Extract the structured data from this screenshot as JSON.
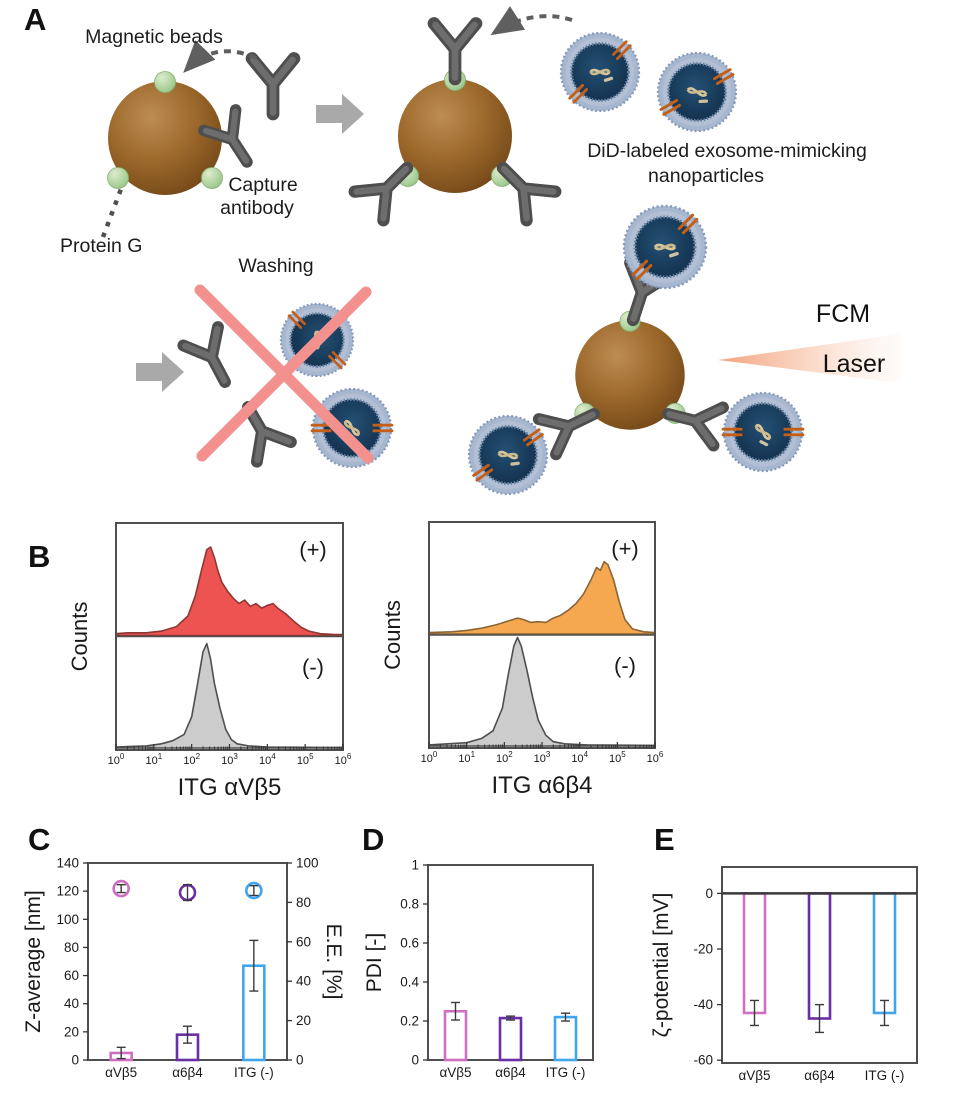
{
  "figure": {
    "panels": {
      "a": "A",
      "b": "B",
      "c": "C",
      "d": "D",
      "e": "E"
    }
  },
  "panel_a": {
    "magnetic_beads": "Magnetic beads",
    "capture_line1": "Capture",
    "capture_line2": "antibody",
    "protein_g": "Protein G",
    "washing": "Washing",
    "did_line1": "DiD-labeled exosome-mimicking",
    "did_line2": "nanoparticles",
    "fcm": "FCM",
    "laser": "Laser"
  },
  "colors": {
    "bead_brown": "#9c6a2e",
    "protein_g_green": "#a3cc92",
    "antibody_gray": "#585858",
    "nanoparticle_blue": "#a7b7d0",
    "washing_x_pink": "#f2918e",
    "laser_orange": "#f29d77",
    "hist_positive_red": "#ed5350",
    "hist_positive_orange": "#f6a851",
    "hist_negative_gray": "#cccccc",
    "bar_avb5_pink": "#cf6fc1",
    "bar_a6b4_purple": "#6a2fa5",
    "bar_itg_blue": "#41a5ee"
  },
  "chart_data": [
    {
      "id": "hist_itg_avb5",
      "type": "area",
      "xlabel": "ITG αVβ5",
      "ylabel": "Counts",
      "x_scale": "log10",
      "x_tick_exponents": [
        0,
        1,
        2,
        3,
        4,
        5,
        6
      ],
      "annotations": [
        "(+)",
        "(-)"
      ],
      "series": [
        {
          "name": "positive",
          "fill": "#ed5350",
          "stroke": "#8f3734",
          "peak_frac": 0.78,
          "points": [
            [
              0,
              0.02
            ],
            [
              0.3,
              0.03
            ],
            [
              0.8,
              0.03
            ],
            [
              1.2,
              0.05
            ],
            [
              1.6,
              0.1
            ],
            [
              1.9,
              0.22
            ],
            [
              2.1,
              0.45
            ],
            [
              2.25,
              0.72
            ],
            [
              2.4,
              0.97
            ],
            [
              2.5,
              1.0
            ],
            [
              2.6,
              0.88
            ],
            [
              2.7,
              0.72
            ],
            [
              2.8,
              0.6
            ],
            [
              2.95,
              0.5
            ],
            [
              3.1,
              0.42
            ],
            [
              3.25,
              0.36
            ],
            [
              3.4,
              0.4
            ],
            [
              3.55,
              0.33
            ],
            [
              3.7,
              0.36
            ],
            [
              3.85,
              0.31
            ],
            [
              4.0,
              0.34
            ],
            [
              4.15,
              0.36
            ],
            [
              4.3,
              0.3
            ],
            [
              4.5,
              0.24
            ],
            [
              4.7,
              0.16
            ],
            [
              4.9,
              0.09
            ],
            [
              5.1,
              0.05
            ],
            [
              5.4,
              0.02
            ],
            [
              5.8,
              0.01
            ],
            [
              6,
              0.01
            ]
          ]
        },
        {
          "name": "negative",
          "fill": "#cccccc",
          "stroke": "#4f4f4f",
          "peak_frac": 0.92,
          "points": [
            [
              0,
              0.01
            ],
            [
              0.8,
              0.02
            ],
            [
              1.2,
              0.04
            ],
            [
              1.5,
              0.07
            ],
            [
              1.8,
              0.13
            ],
            [
              2.0,
              0.3
            ],
            [
              2.15,
              0.6
            ],
            [
              2.3,
              0.92
            ],
            [
              2.4,
              1.0
            ],
            [
              2.5,
              0.85
            ],
            [
              2.6,
              0.62
            ],
            [
              2.75,
              0.38
            ],
            [
              2.9,
              0.18
            ],
            [
              3.05,
              0.08
            ],
            [
              3.2,
              0.04
            ],
            [
              3.5,
              0.02
            ],
            [
              4.0,
              0.01
            ],
            [
              6,
              0.005
            ]
          ]
        }
      ]
    },
    {
      "id": "hist_itg_a6b4",
      "type": "area",
      "xlabel": "ITG α6β4",
      "ylabel": "Counts",
      "x_scale": "log10",
      "x_tick_exponents": [
        0,
        1,
        2,
        3,
        4,
        5,
        6
      ],
      "annotations": [
        "(+)",
        "(-)"
      ],
      "series": [
        {
          "name": "positive",
          "fill": "#f6a851",
          "stroke": "#8a6537",
          "peak_frac": 0.64,
          "points": [
            [
              0,
              0.02
            ],
            [
              0.6,
              0.03
            ],
            [
              1.0,
              0.05
            ],
            [
              1.4,
              0.08
            ],
            [
              1.8,
              0.13
            ],
            [
              2.1,
              0.18
            ],
            [
              2.35,
              0.22
            ],
            [
              2.5,
              0.2
            ],
            [
              2.7,
              0.16
            ],
            [
              2.9,
              0.17
            ],
            [
              3.1,
              0.16
            ],
            [
              3.3,
              0.22
            ],
            [
              3.5,
              0.26
            ],
            [
              3.7,
              0.33
            ],
            [
              3.9,
              0.42
            ],
            [
              4.1,
              0.55
            ],
            [
              4.3,
              0.75
            ],
            [
              4.45,
              0.92
            ],
            [
              4.55,
              0.88
            ],
            [
              4.65,
              1.0
            ],
            [
              4.75,
              0.96
            ],
            [
              4.9,
              0.75
            ],
            [
              5.05,
              0.45
            ],
            [
              5.2,
              0.2
            ],
            [
              5.4,
              0.07
            ],
            [
              5.7,
              0.03
            ],
            [
              6,
              0.02
            ]
          ]
        },
        {
          "name": "negative",
          "fill": "#cccccc",
          "stroke": "#4f4f4f",
          "peak_frac": 0.96,
          "points": [
            [
              0,
              0.01
            ],
            [
              1.0,
              0.03
            ],
            [
              1.4,
              0.07
            ],
            [
              1.7,
              0.14
            ],
            [
              1.95,
              0.35
            ],
            [
              2.1,
              0.65
            ],
            [
              2.25,
              0.92
            ],
            [
              2.35,
              1.0
            ],
            [
              2.45,
              0.92
            ],
            [
              2.6,
              0.7
            ],
            [
              2.75,
              0.45
            ],
            [
              2.9,
              0.24
            ],
            [
              3.1,
              0.1
            ],
            [
              3.3,
              0.04
            ],
            [
              3.6,
              0.02
            ],
            [
              4.2,
              0.01
            ],
            [
              6,
              0.005
            ]
          ]
        }
      ]
    },
    {
      "id": "z_average",
      "type": "bar",
      "ylabel": "Z-average [nm]",
      "categories": [
        "αVβ5",
        "α6β4",
        "ITG (-)"
      ],
      "values": [
        5,
        18,
        67
      ],
      "errors": [
        4,
        6,
        18
      ],
      "ylim": [
        0,
        140
      ],
      "ytick_step": 20,
      "colors": [
        "#cf6fc1",
        "#6a2fa5",
        "#41a5ee"
      ],
      "right_axis": {
        "ylabel": "E.E. [%]",
        "ylim": [
          0,
          100
        ],
        "ytick_step": 20,
        "marker": "circle",
        "values": [
          87,
          85,
          86
        ],
        "errors": [
          2,
          4,
          2.5
        ]
      }
    },
    {
      "id": "pdi",
      "type": "bar",
      "ylabel": "PDI [-]",
      "categories": [
        "αVβ5",
        "α6β4",
        "ITG (-)"
      ],
      "values": [
        0.25,
        0.215,
        0.22
      ],
      "errors": [
        0.045,
        0.01,
        0.02
      ],
      "ylim": [
        0,
        1
      ],
      "ytick_step": 0.2,
      "colors": [
        "#cf6fc1",
        "#6a2fa5",
        "#41a5ee"
      ]
    },
    {
      "id": "zeta_potential",
      "type": "bar",
      "ylabel": "ζ-potential [mV]",
      "categories": [
        "αVβ5",
        "α6β4",
        "ITG (-)"
      ],
      "values": [
        -43,
        -45,
        -43
      ],
      "errors": [
        4.5,
        5,
        4.5
      ],
      "ylim": [
        -61,
        9.5
      ],
      "yticks": [
        0,
        -20,
        -40,
        -60
      ],
      "zero_line": true,
      "colors": [
        "#cf6fc1",
        "#6a2fa5",
        "#41a5ee"
      ]
    }
  ]
}
